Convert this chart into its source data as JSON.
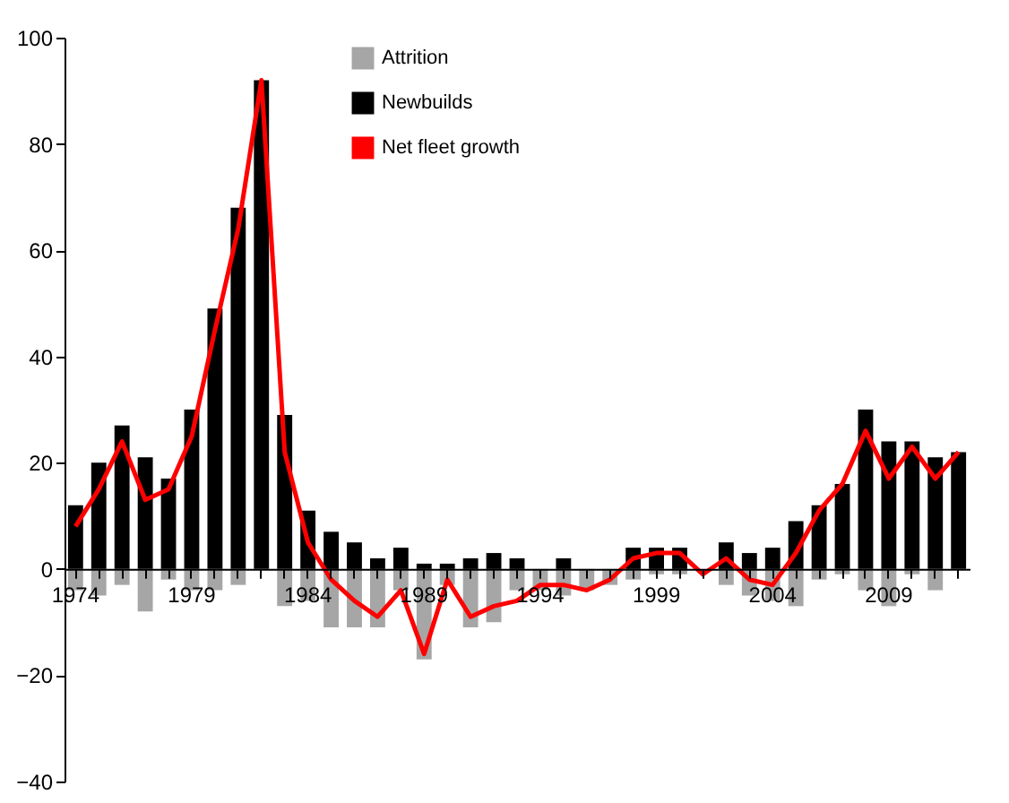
{
  "chart_data": {
    "type": "bar",
    "categories": [
      "1974",
      null,
      null,
      null,
      null,
      "1979",
      null,
      null,
      null,
      null,
      "1984",
      null,
      null,
      null,
      null,
      "1989",
      null,
      null,
      null,
      null,
      "1994",
      null,
      null,
      null,
      null,
      "1999",
      null,
      null,
      null,
      null,
      "2004",
      null,
      null,
      null,
      null,
      "2009",
      null,
      null,
      null
    ],
    "series": [
      {
        "name": "Attrition",
        "color": "#a6a6a6",
        "values": [
          -4,
          -5,
          -3,
          -8,
          -2,
          -4,
          -4,
          -3,
          0,
          -7,
          -6,
          -11,
          -11,
          -11,
          -4,
          -17,
          -3,
          -11,
          -10,
          -4,
          -4,
          -5,
          -4,
          -3,
          -2,
          -1,
          -1,
          0,
          -3,
          -5,
          -6,
          -7,
          -2,
          -1,
          -4,
          -7,
          -1,
          -4,
          0
        ]
      },
      {
        "name": "Newbuilds",
        "color": "#000000",
        "values": [
          12,
          20,
          27,
          21,
          17,
          30,
          49,
          68,
          92,
          29,
          11,
          7,
          5,
          2,
          4,
          1,
          1,
          2,
          3,
          2,
          0,
          2,
          0,
          0,
          4,
          4,
          4,
          0,
          5,
          3,
          4,
          9,
          12,
          16,
          30,
          24,
          24,
          21,
          22
        ]
      },
      {
        "name": "Net fleet growth",
        "type": "line",
        "color": "#ff0000",
        "values": [
          8,
          15,
          24,
          13,
          15,
          25,
          45,
          64,
          92,
          22,
          5,
          -2,
          -6,
          -9,
          -4,
          -16,
          -2,
          -9,
          -7,
          -6,
          -3,
          -3,
          -4,
          -2,
          2,
          3,
          3,
          -1,
          2,
          -2,
          -3,
          3,
          11,
          16,
          26,
          17,
          23,
          17,
          22
        ]
      }
    ],
    "stacked": true,
    "ylim": [
      -40,
      100
    ],
    "yticks": [
      -40,
      -20,
      0,
      20,
      40,
      60,
      80,
      100
    ],
    "legend": "top"
  }
}
